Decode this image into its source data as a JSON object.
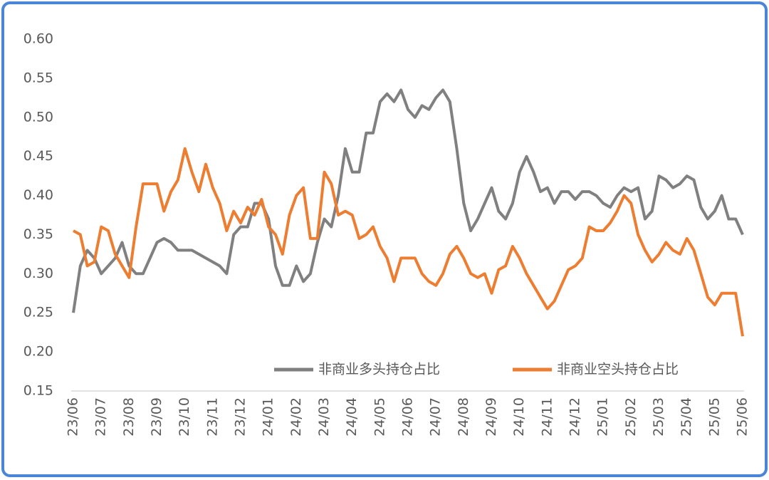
{
  "chart_data": {
    "type": "line",
    "categories": [
      "23/06",
      null,
      null,
      null,
      "23/07",
      null,
      null,
      null,
      "23/08",
      null,
      null,
      null,
      "23/09",
      null,
      null,
      null,
      "23/10",
      null,
      null,
      null,
      "23/11",
      null,
      null,
      null,
      "23/12",
      null,
      null,
      null,
      "24/01",
      null,
      null,
      null,
      "24/02",
      null,
      null,
      null,
      "24/03",
      null,
      null,
      null,
      "24/04",
      null,
      null,
      null,
      "24/05",
      null,
      null,
      null,
      "24/06",
      null,
      null,
      null,
      "24/07",
      null,
      null,
      null,
      "24/08",
      null,
      null,
      null,
      "24/09",
      null,
      null,
      null,
      "24/10",
      null,
      null,
      null,
      "24/11",
      null,
      null,
      null,
      "24/12",
      null,
      null,
      null,
      "25/01",
      null,
      null,
      null,
      "25/02",
      null,
      null,
      null,
      "25/03",
      null,
      null,
      null,
      "25/04",
      null,
      null,
      null,
      "25/05",
      null,
      null,
      null,
      "25/06"
    ],
    "series": [
      {
        "name": "非商业多头持仓占比",
        "color": "#808080",
        "values": [
          0.25,
          0.31,
          0.33,
          0.32,
          0.3,
          0.31,
          0.32,
          0.34,
          0.31,
          0.3,
          0.3,
          0.32,
          0.34,
          0.345,
          0.34,
          0.33,
          0.33,
          0.33,
          0.325,
          0.32,
          0.315,
          0.31,
          0.3,
          0.35,
          0.36,
          0.36,
          0.39,
          0.39,
          0.37,
          0.31,
          0.285,
          0.285,
          0.31,
          0.29,
          0.3,
          0.34,
          0.37,
          0.36,
          0.4,
          0.46,
          0.43,
          0.43,
          0.48,
          0.48,
          0.52,
          0.53,
          0.52,
          0.535,
          0.51,
          0.5,
          0.515,
          0.51,
          0.525,
          0.535,
          0.52,
          0.46,
          0.39,
          0.355,
          0.37,
          0.39,
          0.41,
          0.38,
          0.37,
          0.39,
          0.43,
          0.45,
          0.43,
          0.405,
          0.41,
          0.39,
          0.405,
          0.405,
          0.395,
          0.405,
          0.405,
          0.4,
          0.39,
          0.385,
          0.4,
          0.41,
          0.405,
          0.41,
          0.37,
          0.38,
          0.425,
          0.42,
          0.41,
          0.415,
          0.425,
          0.42,
          0.385,
          0.37,
          0.38,
          0.4,
          0.37,
          0.37,
          0.35
        ]
      },
      {
        "name": "非商业空头持仓占比",
        "color": "#ed7d31",
        "values": [
          0.355,
          0.35,
          0.31,
          0.315,
          0.36,
          0.355,
          0.325,
          0.31,
          0.295,
          0.36,
          0.415,
          0.415,
          0.415,
          0.38,
          0.405,
          0.42,
          0.46,
          0.43,
          0.405,
          0.44,
          0.41,
          0.39,
          0.355,
          0.38,
          0.365,
          0.385,
          0.375,
          0.395,
          0.36,
          0.35,
          0.325,
          0.375,
          0.4,
          0.41,
          0.345,
          0.345,
          0.43,
          0.415,
          0.375,
          0.38,
          0.375,
          0.345,
          0.35,
          0.36,
          0.335,
          0.32,
          0.29,
          0.32,
          0.32,
          0.32,
          0.3,
          0.29,
          0.285,
          0.3,
          0.325,
          0.335,
          0.32,
          0.3,
          0.295,
          0.3,
          0.275,
          0.305,
          0.31,
          0.335,
          0.32,
          0.3,
          0.285,
          0.27,
          0.255,
          0.265,
          0.285,
          0.305,
          0.31,
          0.32,
          0.36,
          0.355,
          0.355,
          0.365,
          0.38,
          0.4,
          0.39,
          0.35,
          0.33,
          0.315,
          0.325,
          0.34,
          0.33,
          0.325,
          0.345,
          0.33,
          0.3,
          0.27,
          0.26,
          0.275,
          0.275,
          0.275,
          0.22
        ]
      }
    ],
    "ylim": [
      0.15,
      0.6
    ],
    "yticks": [
      0.15,
      {
        "value": 0.2,
        "label": "0.20"
      },
      0.25,
      {
        "value": 0.3,
        "label": "0.30"
      },
      0.35,
      {
        "value": 0.4,
        "label": "0.40"
      },
      0.45,
      {
        "value": 0.5,
        "label": "0.50"
      },
      0.55,
      {
        "value": 0.6,
        "label": "0.60"
      }
    ],
    "grid": false,
    "legend": "lower right"
  }
}
